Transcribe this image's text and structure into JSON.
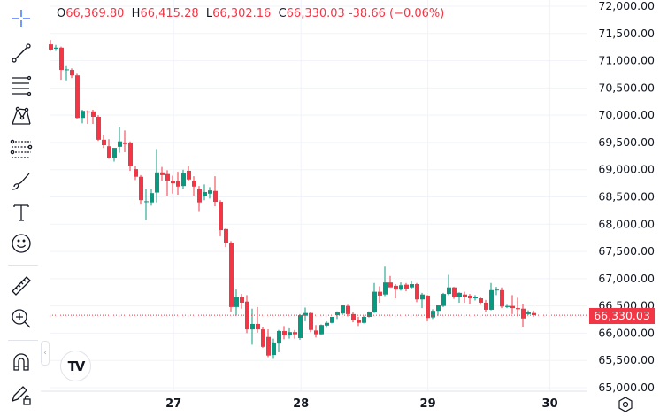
{
  "legend": {
    "open_key": "O",
    "open": "66,369.80",
    "high_key": "H",
    "high": "66,415.28",
    "low_key": "L",
    "low": "66,302.16",
    "close_key": "C",
    "close": "66,330.03",
    "change": "-38.66 (−0.06%)"
  },
  "current_price_label": "66,330.03",
  "logo_text": "TV",
  "colors": {
    "up": "#089981",
    "down": "#f23645",
    "grid": "#f0f3fa",
    "text": "#131722",
    "accent": "#2962ff"
  },
  "toolbar": [
    "crosshair-icon",
    "trend-line-icon",
    "fib-retracement-icon",
    "pattern-icon",
    "forecast-icon",
    "brush-icon",
    "text-icon",
    "emoji-icon",
    "ruler-icon",
    "zoom-in-icon",
    "magnet-icon",
    "lock-drawings-icon"
  ],
  "chart_data": {
    "type": "candlestick",
    "title": "",
    "ylim": [
      65000,
      72000
    ],
    "y_ticks": [
      "65,000.00",
      "65,500.00",
      "66,000.00",
      "66,500.00",
      "67,000.00",
      "67,500.00",
      "68,000.00",
      "68,500.00",
      "69,000.00",
      "69,500.00",
      "70,000.00",
      "70,500.00",
      "71,000.00",
      "71,500.00",
      "72,000.00"
    ],
    "y_tick_values": [
      65000,
      65500,
      66000,
      66500,
      67000,
      67500,
      68000,
      68500,
      69000,
      69500,
      70000,
      70500,
      71000,
      71500,
      72000
    ],
    "x_ticks": [
      {
        "label": "27",
        "index": 23.2
      },
      {
        "label": "28",
        "index": 47.2
      },
      {
        "label": "29",
        "index": 71.1
      },
      {
        "label": "30",
        "index": 94.1
      }
    ],
    "current_price": 66330.03,
    "candles": [
      [
        71300,
        71380,
        71180,
        71205
      ],
      [
        71220,
        71290,
        71180,
        71240
      ],
      [
        71240,
        71260,
        70650,
        70830
      ],
      [
        70830,
        70900,
        70640,
        70840
      ],
      [
        70830,
        70860,
        70680,
        70730
      ],
      [
        70730,
        70760,
        69940,
        69950
      ],
      [
        69950,
        70100,
        69850,
        70080
      ],
      [
        70070,
        70090,
        69840,
        70060
      ],
      [
        70070,
        70100,
        69840,
        69970
      ],
      [
        69970,
        70000,
        69530,
        69550
      ],
      [
        69550,
        69640,
        69400,
        69450
      ],
      [
        69430,
        69560,
        69200,
        69220
      ],
      [
        69220,
        69400,
        69150,
        69400
      ],
      [
        69420,
        69790,
        69310,
        69520
      ],
      [
        69500,
        69720,
        69320,
        69470
      ],
      [
        69500,
        69520,
        68980,
        69060
      ],
      [
        69010,
        69060,
        68810,
        68870
      ],
      [
        68870,
        68900,
        68360,
        68440
      ],
      [
        68410,
        68650,
        68080,
        68420
      ],
      [
        68400,
        68650,
        68340,
        68570
      ],
      [
        68580,
        69380,
        68400,
        68950
      ],
      [
        68950,
        69050,
        68800,
        68900
      ],
      [
        68920,
        68990,
        68520,
        68800
      ],
      [
        68800,
        68890,
        68560,
        68750
      ],
      [
        68790,
        68960,
        68540,
        68690
      ],
      [
        68700,
        69000,
        68640,
        68930
      ],
      [
        68980,
        69060,
        68800,
        68820
      ],
      [
        68800,
        68880,
        68520,
        68690
      ],
      [
        68650,
        68700,
        68240,
        68400
      ],
      [
        68520,
        68730,
        68440,
        68590
      ],
      [
        68560,
        68680,
        68470,
        68620
      ],
      [
        68610,
        68880,
        68330,
        68410
      ],
      [
        68410,
        68440,
        67780,
        67890
      ],
      [
        67910,
        67920,
        67580,
        67660
      ],
      [
        67660,
        67690,
        66390,
        66480
      ],
      [
        66480,
        66800,
        66320,
        66670
      ],
      [
        66660,
        66720,
        66450,
        66560
      ],
      [
        66580,
        66700,
        66000,
        66070
      ],
      [
        66070,
        66450,
        65790,
        66170
      ],
      [
        66170,
        66480,
        66010,
        66070
      ],
      [
        66070,
        66120,
        65730,
        65750
      ],
      [
        65930,
        66070,
        65560,
        65590
      ],
      [
        65600,
        65900,
        65530,
        65830
      ],
      [
        65810,
        66060,
        65650,
        66040
      ],
      [
        66040,
        66130,
        65890,
        65960
      ],
      [
        65960,
        66090,
        65900,
        66020
      ],
      [
        66020,
        66060,
        65900,
        65980
      ],
      [
        65910,
        66350,
        65880,
        66330
      ],
      [
        66320,
        66470,
        66220,
        66370
      ],
      [
        66370,
        66380,
        66020,
        66060
      ],
      [
        66050,
        66150,
        65920,
        65980
      ],
      [
        65980,
        66160,
        65970,
        66150
      ],
      [
        66140,
        66220,
        66100,
        66190
      ],
      [
        66190,
        66270,
        66180,
        66300
      ],
      [
        66330,
        66400,
        66260,
        66380
      ],
      [
        66360,
        66510,
        66330,
        66510
      ],
      [
        66500,
        66520,
        66310,
        66350
      ],
      [
        66350,
        66380,
        66200,
        66240
      ],
      [
        66250,
        66300,
        66130,
        66190
      ],
      [
        66190,
        66320,
        66180,
        66300
      ],
      [
        66300,
        66400,
        66290,
        66380
      ],
      [
        66380,
        66920,
        66370,
        66760
      ],
      [
        66760,
        66860,
        66560,
        66690
      ],
      [
        66710,
        67220,
        66680,
        66930
      ],
      [
        66930,
        67050,
        66850,
        66840
      ],
      [
        66870,
        66900,
        66640,
        66800
      ],
      [
        66800,
        66930,
        66780,
        66880
      ],
      [
        66890,
        66920,
        66770,
        66820
      ],
      [
        66840,
        66960,
        66820,
        66900
      ],
      [
        66900,
        66920,
        66570,
        66620
      ],
      [
        66620,
        66740,
        66460,
        66710
      ],
      [
        66690,
        66700,
        66220,
        66280
      ],
      [
        66290,
        66440,
        66260,
        66410
      ],
      [
        66410,
        66510,
        66320,
        66510
      ],
      [
        66500,
        66740,
        66480,
        66720
      ],
      [
        66720,
        67070,
        66700,
        66840
      ],
      [
        66840,
        66850,
        66630,
        66670
      ],
      [
        66670,
        66750,
        66560,
        66740
      ],
      [
        66710,
        66760,
        66560,
        66670
      ],
      [
        66690,
        66720,
        66530,
        66640
      ],
      [
        66640,
        66700,
        66600,
        66670
      ],
      [
        66640,
        66670,
        66520,
        66560
      ],
      [
        66560,
        66610,
        66390,
        66430
      ],
      [
        66430,
        66920,
        66420,
        66790
      ],
      [
        66790,
        66850,
        66700,
        66800
      ],
      [
        66790,
        66840,
        66460,
        66490
      ],
      [
        66480,
        66520,
        66460,
        66500
      ],
      [
        66500,
        66700,
        66350,
        66460
      ],
      [
        66460,
        66650,
        66310,
        66440
      ],
      [
        66450,
        66530,
        66120,
        66270
      ],
      [
        66350,
        66420,
        66330,
        66380
      ],
      [
        66369.8,
        66415.28,
        66302.16,
        66330.03
      ]
    ]
  }
}
